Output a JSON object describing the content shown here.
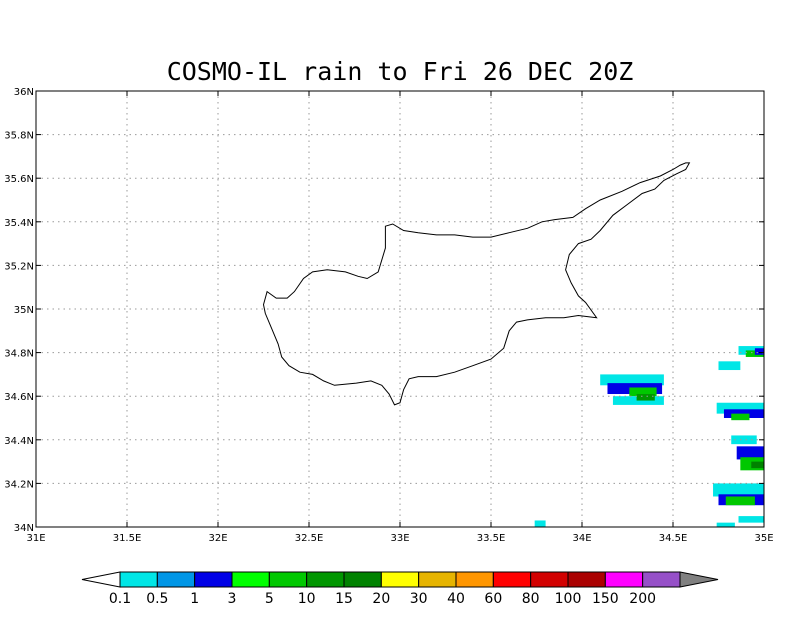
{
  "title": "COSMO-IL rain to Fri 26 DEC 20Z",
  "map": {
    "lon_range": [
      31,
      35
    ],
    "lat_range": [
      34,
      36
    ],
    "x_ticks": [
      {
        "value": 31,
        "label": "31E"
      },
      {
        "value": 31.5,
        "label": "31.5E"
      },
      {
        "value": 32,
        "label": "32E"
      },
      {
        "value": 32.5,
        "label": "32.5E"
      },
      {
        "value": 33,
        "label": "33E"
      },
      {
        "value": 33.5,
        "label": "33.5E"
      },
      {
        "value": 34,
        "label": "34E"
      },
      {
        "value": 34.5,
        "label": "34.5E"
      },
      {
        "value": 35,
        "label": "35E"
      }
    ],
    "y_ticks": [
      {
        "value": 34,
        "label": "34N"
      },
      {
        "value": 34.2,
        "label": "34.2N"
      },
      {
        "value": 34.4,
        "label": "34.4N"
      },
      {
        "value": 34.6,
        "label": "34.6N"
      },
      {
        "value": 34.8,
        "label": "34.8N"
      },
      {
        "value": 35,
        "label": "35N"
      },
      {
        "value": 35.2,
        "label": "35.2N"
      },
      {
        "value": 35.4,
        "label": "35.4N"
      },
      {
        "value": 35.6,
        "label": "35.6N"
      },
      {
        "value": 35.8,
        "label": "35.8N"
      },
      {
        "value": 36,
        "label": "36N"
      }
    ],
    "grid": "dotted",
    "coastline_name": "cyprus-coastline",
    "coastline": [
      [
        32.27,
        35.08
      ],
      [
        32.32,
        35.05
      ],
      [
        32.38,
        35.05
      ],
      [
        32.42,
        35.08
      ],
      [
        32.47,
        35.14
      ],
      [
        32.52,
        35.17
      ],
      [
        32.6,
        35.18
      ],
      [
        32.7,
        35.17
      ],
      [
        32.77,
        35.15
      ],
      [
        32.82,
        35.14
      ],
      [
        32.88,
        35.17
      ],
      [
        32.92,
        35.28
      ],
      [
        32.92,
        35.38
      ],
      [
        32.96,
        35.39
      ],
      [
        33.02,
        35.36
      ],
      [
        33.1,
        35.35
      ],
      [
        33.2,
        35.34
      ],
      [
        33.3,
        35.34
      ],
      [
        33.4,
        35.33
      ],
      [
        33.5,
        35.33
      ],
      [
        33.6,
        35.35
      ],
      [
        33.7,
        35.37
      ],
      [
        33.78,
        35.4
      ],
      [
        33.85,
        35.41
      ],
      [
        33.95,
        35.42
      ],
      [
        34.02,
        35.46
      ],
      [
        34.1,
        35.5
      ],
      [
        34.22,
        35.54
      ],
      [
        34.32,
        35.58
      ],
      [
        34.43,
        35.61
      ],
      [
        34.5,
        35.64
      ],
      [
        34.54,
        35.66
      ],
      [
        34.57,
        35.67
      ],
      [
        34.59,
        35.67
      ],
      [
        34.57,
        35.64
      ],
      [
        34.52,
        35.62
      ],
      [
        34.45,
        35.59
      ],
      [
        34.4,
        35.55
      ],
      [
        34.33,
        35.53
      ],
      [
        34.25,
        35.48
      ],
      [
        34.17,
        35.43
      ],
      [
        34.1,
        35.36
      ],
      [
        34.05,
        35.32
      ],
      [
        33.98,
        35.3
      ],
      [
        33.93,
        35.25
      ],
      [
        33.91,
        35.18
      ],
      [
        33.94,
        35.12
      ],
      [
        33.98,
        35.06
      ],
      [
        34.02,
        35.03
      ],
      [
        34.08,
        34.96
      ],
      [
        33.98,
        34.97
      ],
      [
        33.9,
        34.96
      ],
      [
        33.8,
        34.96
      ],
      [
        33.7,
        34.95
      ],
      [
        33.64,
        34.94
      ],
      [
        33.6,
        34.9
      ],
      [
        33.57,
        34.82
      ],
      [
        33.5,
        34.77
      ],
      [
        33.4,
        34.74
      ],
      [
        33.3,
        34.71
      ],
      [
        33.2,
        34.69
      ],
      [
        33.1,
        34.69
      ],
      [
        33.05,
        34.68
      ],
      [
        33.02,
        34.63
      ],
      [
        33.0,
        34.57
      ],
      [
        32.97,
        34.56
      ],
      [
        32.94,
        34.61
      ],
      [
        32.9,
        34.65
      ],
      [
        32.84,
        34.67
      ],
      [
        32.76,
        34.66
      ],
      [
        32.64,
        34.65
      ],
      [
        32.58,
        34.67
      ],
      [
        32.52,
        34.7
      ],
      [
        32.45,
        34.71
      ],
      [
        32.39,
        34.74
      ],
      [
        32.35,
        34.78
      ],
      [
        32.33,
        34.84
      ],
      [
        32.29,
        34.92
      ],
      [
        32.26,
        34.98
      ],
      [
        32.25,
        35.02
      ],
      [
        32.27,
        35.08
      ]
    ]
  },
  "rain_cells": [
    {
      "lon": 34.1,
      "lat": 34.65,
      "w": 0.35,
      "h": 0.05,
      "level": 0
    },
    {
      "lon": 34.14,
      "lat": 34.61,
      "w": 0.3,
      "h": 0.05,
      "level": 2
    },
    {
      "lon": 34.26,
      "lat": 34.6,
      "w": 0.15,
      "h": 0.04,
      "level": 4
    },
    {
      "lon": 34.17,
      "lat": 34.56,
      "w": 0.28,
      "h": 0.04,
      "level": 0
    },
    {
      "lon": 34.3,
      "lat": 34.58,
      "w": 0.1,
      "h": 0.03,
      "level": 5
    },
    {
      "lon": 34.86,
      "lat": 34.79,
      "w": 0.14,
      "h": 0.04,
      "level": 0
    },
    {
      "lon": 34.9,
      "lat": 34.78,
      "w": 0.1,
      "h": 0.03,
      "level": 4
    },
    {
      "lon": 34.95,
      "lat": 34.79,
      "w": 0.05,
      "h": 0.03,
      "level": 2
    },
    {
      "lon": 34.75,
      "lat": 34.72,
      "w": 0.12,
      "h": 0.04,
      "level": 0
    },
    {
      "lon": 34.74,
      "lat": 34.52,
      "w": 0.26,
      "h": 0.05,
      "level": 0
    },
    {
      "lon": 34.78,
      "lat": 34.5,
      "w": 0.22,
      "h": 0.04,
      "level": 2
    },
    {
      "lon": 34.82,
      "lat": 34.49,
      "w": 0.1,
      "h": 0.03,
      "level": 4
    },
    {
      "lon": 34.82,
      "lat": 34.38,
      "w": 0.14,
      "h": 0.04,
      "level": 0
    },
    {
      "lon": 34.85,
      "lat": 34.31,
      "w": 0.15,
      "h": 0.06,
      "level": 2
    },
    {
      "lon": 34.87,
      "lat": 34.26,
      "w": 0.13,
      "h": 0.06,
      "level": 4
    },
    {
      "lon": 34.93,
      "lat": 34.27,
      "w": 0.07,
      "h": 0.03,
      "level": 6
    },
    {
      "lon": 34.72,
      "lat": 34.14,
      "w": 0.28,
      "h": 0.06,
      "level": 0
    },
    {
      "lon": 34.75,
      "lat": 34.1,
      "w": 0.25,
      "h": 0.05,
      "level": 2
    },
    {
      "lon": 34.79,
      "lat": 34.1,
      "w": 0.16,
      "h": 0.04,
      "level": 4
    },
    {
      "lon": 34.86,
      "lat": 34.02,
      "w": 0.14,
      "h": 0.03,
      "level": 0
    },
    {
      "lon": 34.74,
      "lat": 34.0,
      "w": 0.1,
      "h": 0.02,
      "level": 0
    },
    {
      "lon": 33.74,
      "lat": 34.0,
      "w": 0.06,
      "h": 0.03,
      "level": 0
    }
  ],
  "colorbar": {
    "labels": [
      "0.1",
      "0.5",
      "1",
      "3",
      "5",
      "10",
      "15",
      "20",
      "30",
      "40",
      "60",
      "80",
      "100",
      "150",
      "200"
    ],
    "colors": [
      "#00e6e6",
      "#0096e6",
      "#0000e6",
      "#00ff00",
      "#00c800",
      "#009600",
      "#008200",
      "#ffff00",
      "#e6b400",
      "#ff9600",
      "#ff0000",
      "#d20000",
      "#aa0000",
      "#ff00ff",
      "#9650c8"
    ],
    "under_color": "#ffffff",
    "over_color": "#808080"
  }
}
